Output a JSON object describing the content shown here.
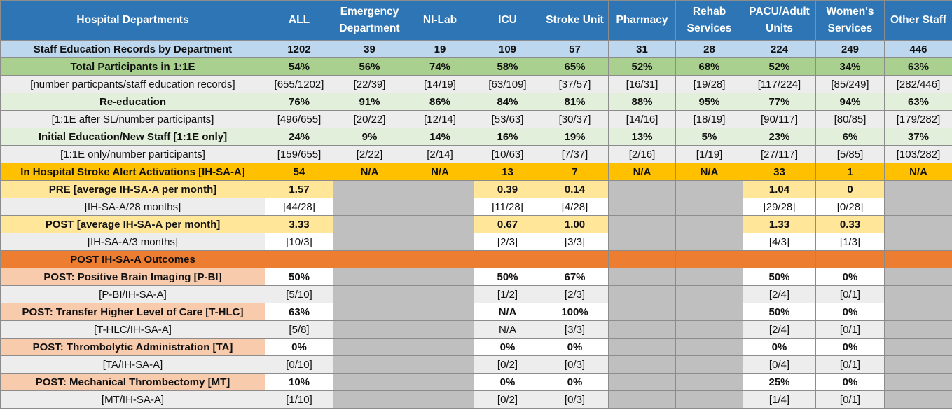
{
  "columns": [
    "Hospital Departments",
    "ALL",
    "Emergency Department",
    "NI-Lab",
    "ICU",
    "Stroke Unit",
    "Pharmacy",
    "Rehab Services",
    "PACU/Adult Units",
    "Women's Services",
    "Other Staff"
  ],
  "rows": [
    {
      "label": "Staff Education Records by Department",
      "cells": [
        "1202",
        "39",
        "19",
        "109",
        "57",
        "31",
        "28",
        "224",
        "249",
        "446"
      ]
    },
    {
      "label": "Total Participants in 1:1E",
      "cells": [
        "54%",
        "56%",
        "74%",
        "58%",
        "65%",
        "52%",
        "68%",
        "52%",
        "34%",
        "63%"
      ]
    },
    {
      "label": "[number particpants/staff education records]",
      "cells": [
        "[655/1202]",
        "[22/39]",
        "[14/19]",
        "[63/109]",
        "[37/57]",
        "[16/31]",
        "[19/28]",
        "[117/224]",
        "[85/249]",
        "[282/446]"
      ]
    },
    {
      "label": "Re-education",
      "cells": [
        "76%",
        "91%",
        "86%",
        "84%",
        "81%",
        "88%",
        "95%",
        "77%",
        "94%",
        "63%"
      ]
    },
    {
      "label": "[1:1E after SL/number participants]",
      "cells": [
        "[496/655]",
        "[20/22]",
        "[12/14]",
        "[53/63]",
        "[30/37]",
        "[14/16]",
        "[18/19]",
        "[90/117]",
        "[80/85]",
        "[179/282]"
      ]
    },
    {
      "label": "Initial Education/New Staff [1:1E only]",
      "cells": [
        "24%",
        "9%",
        "14%",
        "16%",
        "19%",
        "13%",
        "5%",
        "23%",
        "6%",
        "37%"
      ]
    },
    {
      "label": "[1:1E only/number participants]",
      "cells": [
        "[159/655]",
        "[2/22]",
        "[2/14]",
        "[10/63]",
        "[7/37]",
        "[2/16]",
        "[1/19]",
        "[27/117]",
        "[5/85]",
        "[103/282]"
      ]
    },
    {
      "label": "In Hospital Stroke Alert Activations [IH-SA-A]",
      "cells": [
        "54",
        "N/A",
        "N/A",
        "13",
        "7",
        "N/A",
        "N/A",
        "33",
        "1",
        "N/A"
      ]
    },
    {
      "label": "PRE [average IH-SA-A per month]",
      "cells": [
        "1.57",
        "",
        "",
        "0.39",
        "0.14",
        "",
        "",
        "1.04",
        "0",
        ""
      ]
    },
    {
      "label": "[IH-SA-A/28 months]",
      "cells": [
        "[44/28]",
        "",
        "",
        "[11/28]",
        "[4/28]",
        "",
        "",
        "[29/28]",
        "[0/28]",
        ""
      ]
    },
    {
      "label": "POST [average IH-SA-A per month]",
      "cells": [
        "3.33",
        "",
        "",
        "0.67",
        "1.00",
        "",
        "",
        "1.33",
        "0.33",
        ""
      ]
    },
    {
      "label": "[IH-SA-A/3 months]",
      "cells": [
        "[10/3]",
        "",
        "",
        "[2/3]",
        "[3/3]",
        "",
        "",
        "[4/3]",
        "[1/3]",
        ""
      ]
    },
    {
      "label": "POST IH-SA-A Outcomes",
      "cells": [
        "",
        "",
        "",
        "",
        "",
        "",
        "",
        "",
        "",
        ""
      ]
    },
    {
      "label": "POST: Positive Brain Imaging [P-BI]",
      "cells": [
        "50%",
        "",
        "",
        "50%",
        "67%",
        "",
        "",
        "50%",
        "0%",
        ""
      ]
    },
    {
      "label": "[P-BI/IH-SA-A]",
      "cells": [
        "[5/10]",
        "",
        "",
        "[1/2]",
        "[2/3]",
        "",
        "",
        "[2/4]",
        "[0/1]",
        ""
      ]
    },
    {
      "label": "POST: Transfer Higher Level of Care [T-HLC]",
      "cells": [
        "63%",
        "",
        "",
        "N/A",
        "100%",
        "",
        "",
        "50%",
        "0%",
        ""
      ]
    },
    {
      "label": "[T-HLC/IH-SA-A]",
      "cells": [
        "[5/8]",
        "",
        "",
        "N/A",
        "[3/3]",
        "",
        "",
        "[2/4]",
        "[0/1]",
        ""
      ]
    },
    {
      "label": "POST: Thrombolytic Administration [TA]",
      "cells": [
        "0%",
        "",
        "",
        "0%",
        "0%",
        "",
        "",
        "0%",
        "0%",
        ""
      ]
    },
    {
      "label": "[TA/IH-SA-A]",
      "cells": [
        "[0/10]",
        "",
        "",
        "[0/2]",
        "[0/3]",
        "",
        "",
        "[0/4]",
        "[0/1]",
        ""
      ]
    },
    {
      "label": "POST: Mechanical Thrombectomy [MT]",
      "cells": [
        "10%",
        "",
        "",
        "0%",
        "0%",
        "",
        "",
        "25%",
        "0%",
        ""
      ]
    },
    {
      "label": "[MT/IH-SA-A]",
      "cells": [
        "[1/10]",
        "",
        "",
        "[0/2]",
        "[0/3]",
        "",
        "",
        "[1/4]",
        "[0/1]",
        ""
      ]
    }
  ]
}
